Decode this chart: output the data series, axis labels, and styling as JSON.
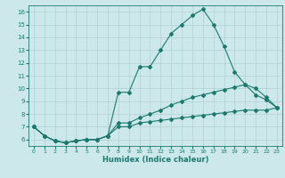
{
  "xlabel": "Humidex (Indice chaleur)",
  "bg_color": "#cce8ea",
  "grid_color": "#b0d0d4",
  "line_color": "#1a7a6e",
  "spine_color": "#1a7a6e",
  "xlim": [
    -0.5,
    23.5
  ],
  "ylim": [
    5.5,
    16.5
  ],
  "yticks": [
    6,
    7,
    8,
    9,
    10,
    11,
    12,
    13,
    14,
    15,
    16
  ],
  "xticks": [
    0,
    1,
    2,
    3,
    4,
    5,
    6,
    7,
    8,
    9,
    10,
    11,
    12,
    13,
    14,
    15,
    16,
    17,
    18,
    19,
    20,
    21,
    22,
    23
  ],
  "line1_x": [
    0,
    1,
    2,
    3,
    4,
    5,
    6,
    7,
    8,
    9,
    10,
    11,
    12,
    13,
    14,
    15,
    16,
    17,
    18,
    19,
    20,
    21,
    22,
    23
  ],
  "line1_y": [
    7.0,
    6.3,
    5.9,
    5.75,
    5.9,
    6.0,
    6.0,
    6.3,
    9.7,
    9.7,
    11.7,
    11.7,
    13.0,
    14.3,
    15.0,
    15.7,
    16.2,
    15.0,
    13.3,
    11.3,
    10.3,
    10.0,
    9.3,
    8.5
  ],
  "line2_x": [
    0,
    1,
    2,
    3,
    4,
    5,
    6,
    7,
    8,
    9,
    10,
    11,
    12,
    13,
    14,
    15,
    16,
    17,
    18,
    19,
    20,
    21,
    22,
    23
  ],
  "line2_y": [
    7.0,
    6.3,
    5.9,
    5.75,
    5.9,
    6.0,
    6.0,
    6.3,
    7.3,
    7.3,
    7.7,
    8.0,
    8.3,
    8.7,
    9.0,
    9.3,
    9.5,
    9.7,
    9.9,
    10.1,
    10.3,
    9.5,
    9.1,
    8.5
  ],
  "line3_x": [
    0,
    1,
    2,
    3,
    4,
    5,
    6,
    7,
    8,
    9,
    10,
    11,
    12,
    13,
    14,
    15,
    16,
    17,
    18,
    19,
    20,
    21,
    22,
    23
  ],
  "line3_y": [
    7.0,
    6.3,
    5.9,
    5.75,
    5.9,
    6.0,
    6.0,
    6.3,
    7.0,
    7.0,
    7.3,
    7.4,
    7.5,
    7.6,
    7.7,
    7.8,
    7.9,
    8.0,
    8.1,
    8.2,
    8.3,
    8.3,
    8.3,
    8.5
  ]
}
